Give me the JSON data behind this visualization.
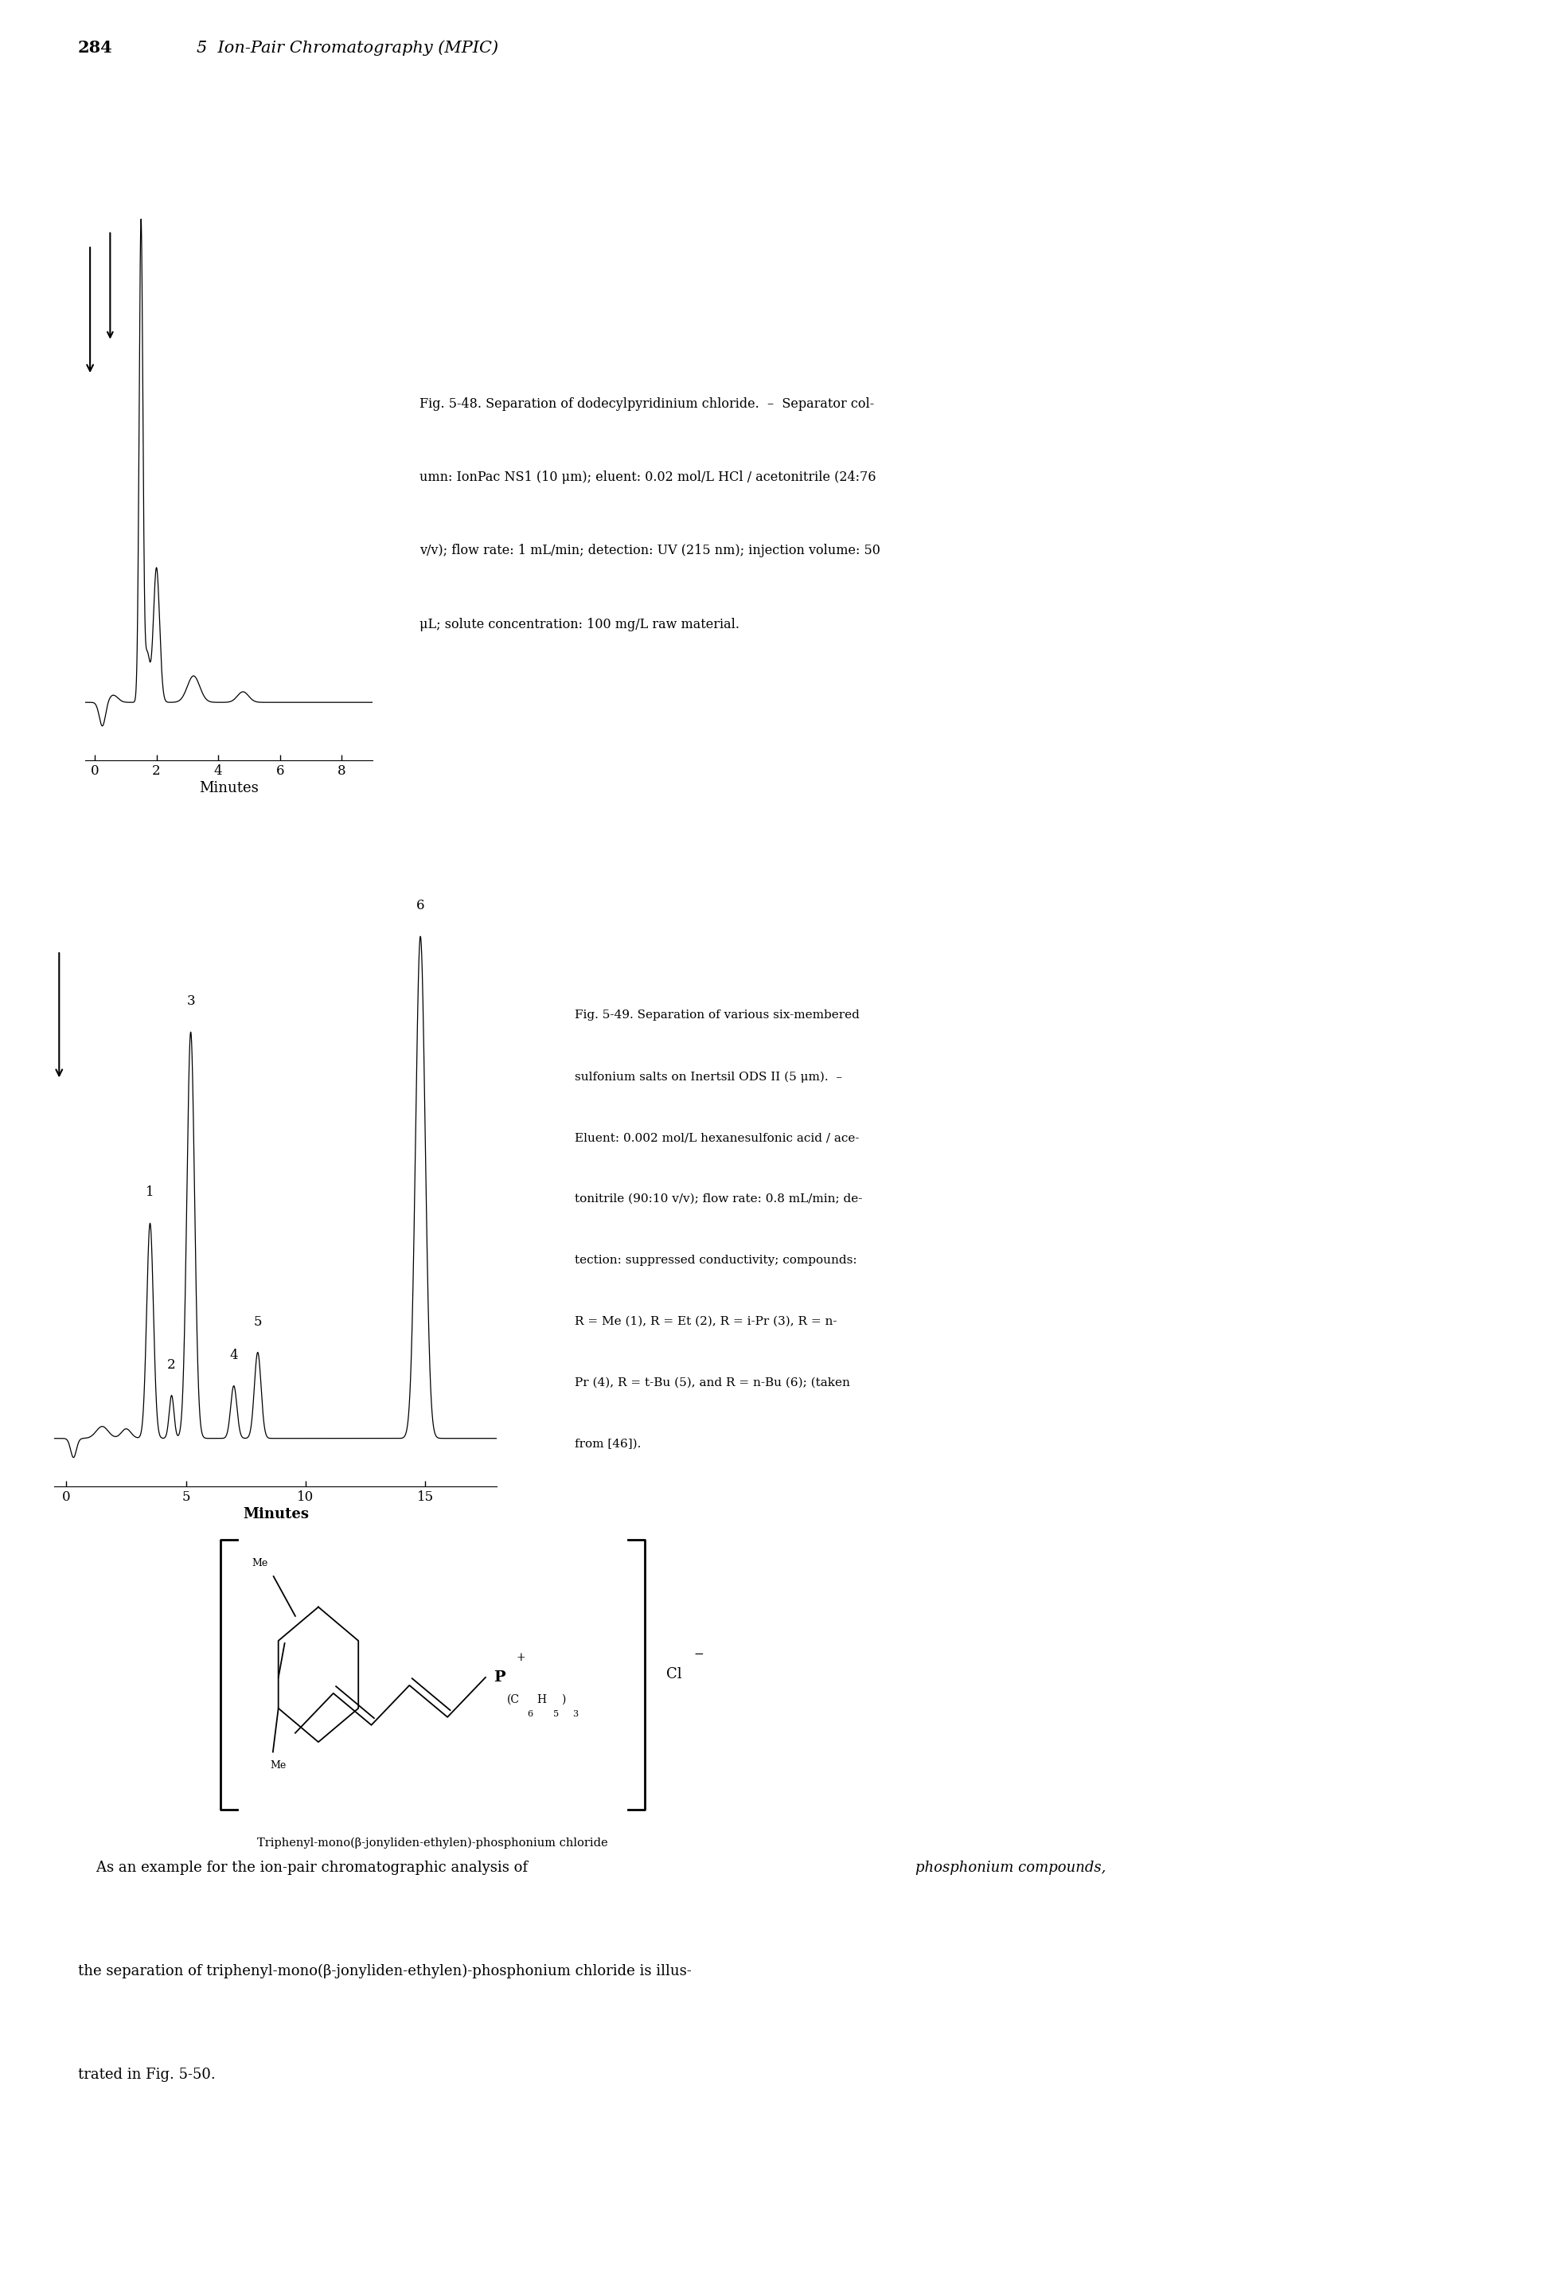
{
  "page_header_num": "284",
  "page_header_title": "5  Ion-Pair Chromatography (MPIC)",
  "fig48_caption_line1": "Fig. 5-48. Separation of dodecylpyridinium chloride.  –  Separator col-",
  "fig48_caption_line2": "umn: IonPac NS1 (10 μm); eluent: 0.02 mol/L HCl / acetonitrile (24:76",
  "fig48_caption_line3": "v/v); flow rate: 1 mL/min; detection: UV (215 nm); injection volume: 50",
  "fig48_caption_line4": "μL; solute concentration: 100 mg/L raw material.",
  "fig49_caption_line1": "Fig. 5-49. Separation of various six-membered",
  "fig49_caption_line2": "sulfonium salts on Inertsil ODS II (5 μm).  –",
  "fig49_caption_line3": "Eluent: 0.002 mol/L hexanesulfonic acid / ace-",
  "fig49_caption_line4": "tonitrile (90:10 v/v); flow rate: 0.8 mL/min; de-",
  "fig49_caption_line5": "tection: suppressed conductivity; compounds:",
  "fig49_caption_line6": "R = Me (1), R = Et (2), R = i-Pr (3), R = n-",
  "fig49_caption_line7": "Pr (4), R = t-Bu (5), and R = n-Bu (6); (taken",
  "fig49_caption_line8": "from [46]).",
  "structure_label": "Triphenyl-mono(β-jonyliden-ethylen)-phosphonium chloride",
  "bottom_para": "   As an example for the ion-pair chromatographic analysis of phosphonium compounds, the separation of triphenyl-mono(β-jonyliden-ethylen)-phosphonium chloride is illustrated in Fig. 5-50.",
  "bg_color": "#ffffff",
  "text_color": "#000000"
}
